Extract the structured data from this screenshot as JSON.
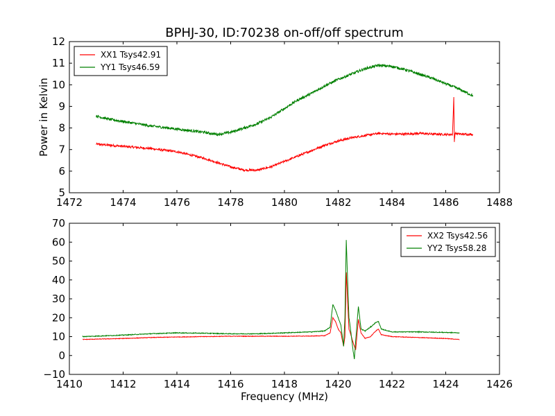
{
  "figure": {
    "title": "BPHJ-30, ID:70238 on-off/off spectrum"
  },
  "chart_data": [
    {
      "type": "line",
      "title": "BPHJ-30, ID:70238 on-off/off spectrum",
      "xlabel": "",
      "ylabel": "Power in Kelvin",
      "xlim": [
        1472,
        1488
      ],
      "ylim": [
        5,
        12
      ],
      "xticks": [
        1472,
        1474,
        1476,
        1478,
        1480,
        1482,
        1484,
        1486,
        1488
      ],
      "yticks": [
        5,
        6,
        7,
        8,
        9,
        10,
        11,
        12
      ],
      "grid": false,
      "legend_position": "upper-left",
      "series": [
        {
          "name": "XX1 Tsys42.91",
          "color": "#ff0000",
          "x": [
            1473.0,
            1474.0,
            1475.0,
            1476.0,
            1477.0,
            1477.5,
            1478.0,
            1478.5,
            1479.0,
            1479.5,
            1480.0,
            1480.5,
            1481.0,
            1481.5,
            1482.0,
            1482.5,
            1483.0,
            1483.5,
            1484.0,
            1484.5,
            1485.0,
            1485.5,
            1486.0,
            1486.25,
            1486.3,
            1486.32,
            1486.35,
            1486.5,
            1487.0
          ],
          "y": [
            7.25,
            7.15,
            7.05,
            6.9,
            6.6,
            6.4,
            6.2,
            6.05,
            6.05,
            6.2,
            6.45,
            6.7,
            6.95,
            7.2,
            7.4,
            7.55,
            7.65,
            7.75,
            7.72,
            7.72,
            7.75,
            7.72,
            7.7,
            7.7,
            9.4,
            7.4,
            7.75,
            7.72,
            7.7
          ],
          "noise": 0.05
        },
        {
          "name": "YY1 Tsys46.59",
          "color": "#008000",
          "x": [
            1473.0,
            1473.5,
            1474.0,
            1475.0,
            1476.0,
            1477.0,
            1477.5,
            1478.0,
            1478.5,
            1479.0,
            1479.5,
            1480.0,
            1480.5,
            1481.0,
            1481.5,
            1482.0,
            1482.5,
            1483.0,
            1483.5,
            1484.0,
            1484.5,
            1485.0,
            1485.5,
            1486.0,
            1486.5,
            1487.0
          ],
          "y": [
            8.55,
            8.4,
            8.3,
            8.1,
            7.95,
            7.8,
            7.7,
            7.8,
            8.0,
            8.2,
            8.5,
            8.9,
            9.3,
            9.6,
            9.95,
            10.25,
            10.5,
            10.75,
            10.9,
            10.85,
            10.7,
            10.5,
            10.3,
            10.05,
            9.8,
            9.5
          ],
          "noise": 0.06
        }
      ]
    },
    {
      "type": "line",
      "title": "",
      "xlabel": "Frequency (MHz)",
      "ylabel": "",
      "xlim": [
        1410,
        1426
      ],
      "ylim": [
        -10,
        70
      ],
      "xticks": [
        1410,
        1412,
        1414,
        1416,
        1418,
        1420,
        1422,
        1424,
        1426
      ],
      "yticks": [
        -10,
        0,
        10,
        20,
        30,
        40,
        50,
        60,
        70
      ],
      "grid": false,
      "legend_position": "upper-right",
      "series": [
        {
          "name": "XX2 Tsys42.56",
          "color": "#ff0000",
          "x": [
            1410.5,
            1412.0,
            1413.0,
            1414.0,
            1415.0,
            1416.0,
            1417.0,
            1418.0,
            1419.0,
            1419.5,
            1419.7,
            1419.8,
            1419.9,
            1420.0,
            1420.1,
            1420.2,
            1420.25,
            1420.3,
            1420.35,
            1420.4,
            1420.45,
            1420.55,
            1420.65,
            1420.75,
            1420.85,
            1421.0,
            1421.2,
            1421.4,
            1421.5,
            1421.6,
            1422.0,
            1423.0,
            1424.0,
            1424.5
          ],
          "y": [
            8.5,
            9.0,
            9.5,
            9.8,
            10.0,
            10.2,
            10.2,
            10.2,
            10.3,
            10.5,
            12.0,
            20.0,
            18.0,
            14.0,
            12.0,
            5.0,
            10.0,
            44.0,
            28.0,
            14.0,
            12.0,
            7.0,
            3.0,
            19.0,
            12.0,
            9.0,
            10.0,
            13.0,
            14.0,
            11.0,
            10.0,
            9.5,
            9.0,
            8.5
          ],
          "noise": 0.15
        },
        {
          "name": "YY2 Tsys58.28",
          "color": "#008000",
          "x": [
            1410.5,
            1412.0,
            1413.0,
            1414.0,
            1415.0,
            1416.0,
            1417.0,
            1418.0,
            1419.0,
            1419.5,
            1419.7,
            1419.8,
            1419.9,
            1420.0,
            1420.1,
            1420.2,
            1420.25,
            1420.3,
            1420.35,
            1420.4,
            1420.45,
            1420.55,
            1420.6,
            1420.65,
            1420.75,
            1420.85,
            1421.0,
            1421.2,
            1421.4,
            1421.5,
            1421.6,
            1422.0,
            1423.0,
            1424.0,
            1424.5
          ],
          "y": [
            10.0,
            10.8,
            11.5,
            12.0,
            11.8,
            11.5,
            11.5,
            12.0,
            12.5,
            13.0,
            15.0,
            27.0,
            24.0,
            20.0,
            16.0,
            5.0,
            20.0,
            61.0,
            40.0,
            20.0,
            15.0,
            3.0,
            -2.0,
            8.0,
            26.0,
            14.0,
            13.0,
            15.0,
            17.5,
            18.0,
            14.0,
            12.5,
            12.5,
            12.2,
            12.0
          ],
          "noise": 0.2
        }
      ]
    }
  ]
}
